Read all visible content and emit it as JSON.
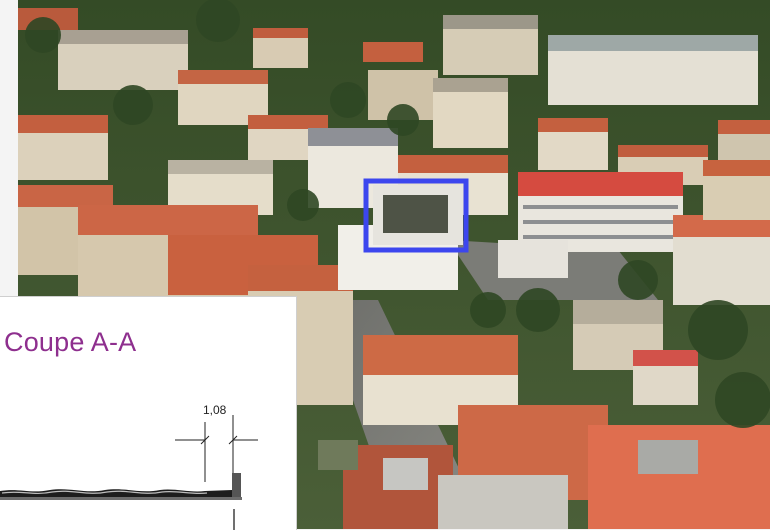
{
  "aerial": {
    "highlight_color": "#3c46ee",
    "roof_color": "#c8603f",
    "vegetation_color": "#3d5a2c"
  },
  "section_drawing": {
    "title": "Coupe A-A",
    "title_color": "#8e2f8e",
    "dimension_label": "1,08"
  }
}
